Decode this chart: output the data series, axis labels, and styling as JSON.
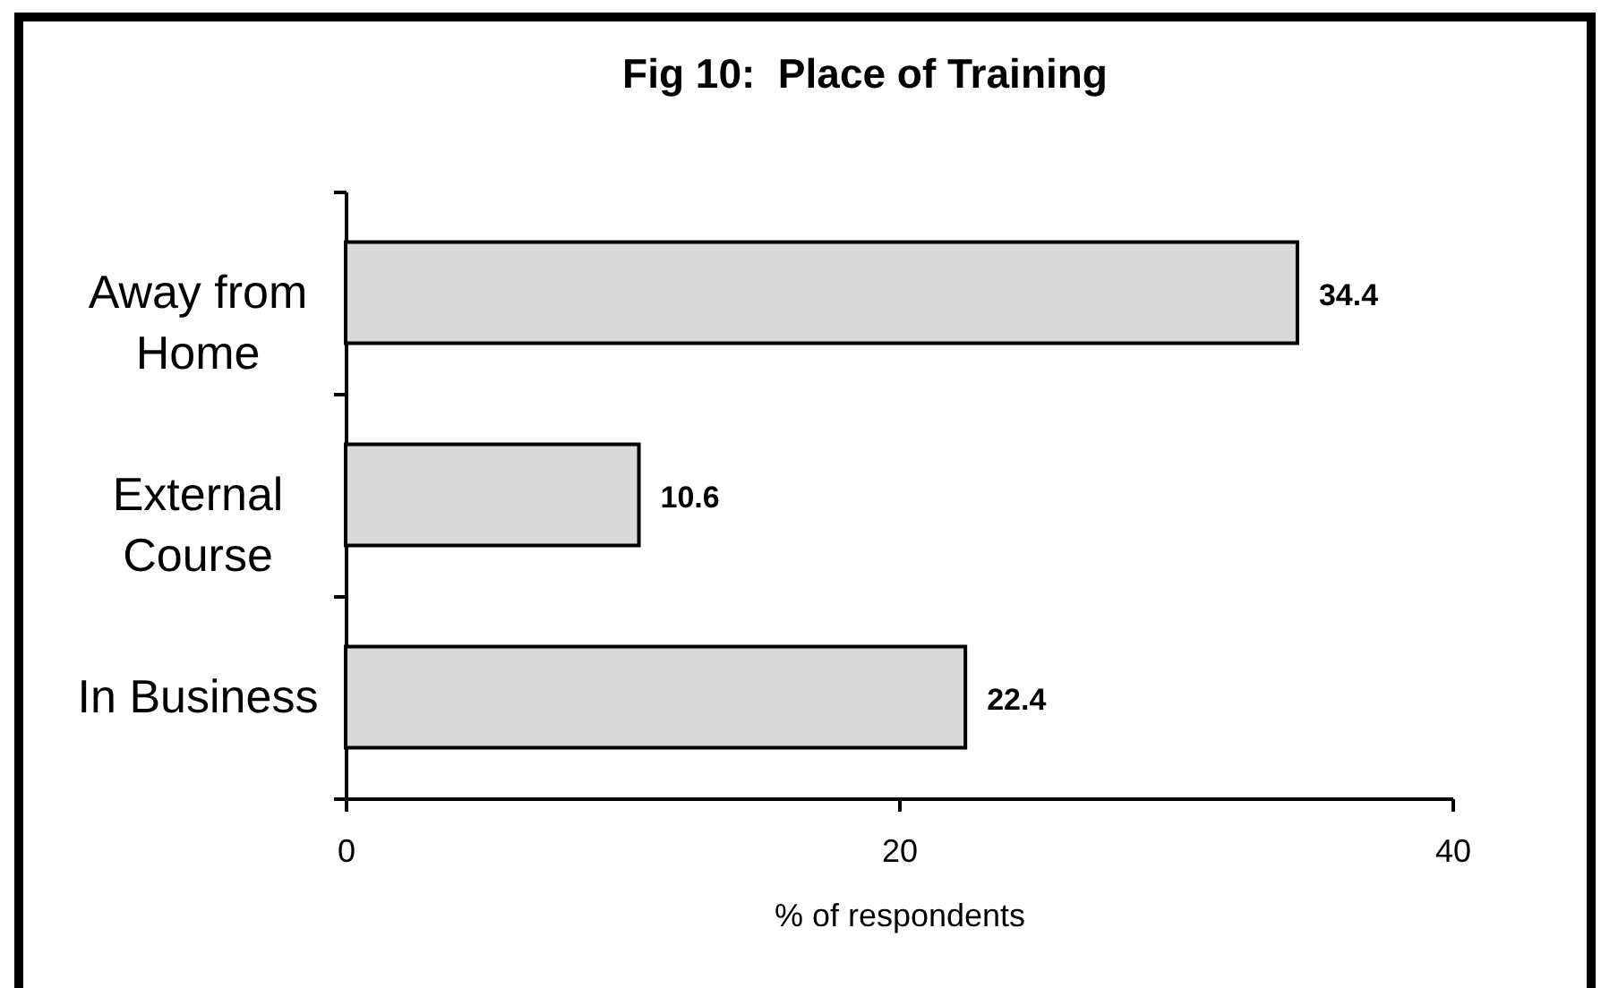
{
  "chart_data": {
    "type": "bar",
    "orientation": "horizontal",
    "title": "Fig 10:  Place of Training",
    "xlabel": "% of respondents",
    "categories": [
      "Away from Home",
      "External Course",
      "In Business"
    ],
    "values": [
      34.4,
      10.6,
      22.4
    ],
    "color": "#d9d9d9",
    "xlim": [
      0,
      40
    ],
    "xticks": [
      0,
      20,
      40
    ],
    "data_labels": true
  }
}
